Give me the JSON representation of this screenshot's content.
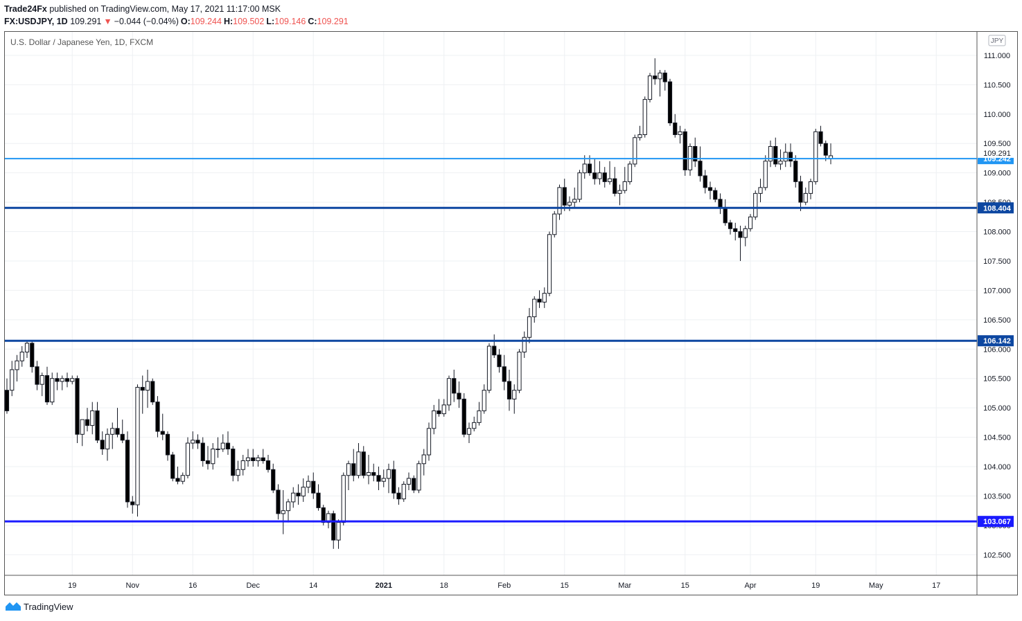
{
  "header": {
    "author": "Trade24Fx",
    "published": "published on TradingView.com, May 17, 2021 11:17:00 MSK",
    "symbol": "FX:USDJPY, 1D",
    "last": "109.291",
    "change": "−0.044 (−0.04%)",
    "o_label": "O:",
    "o": "109.244",
    "h_label": "H:",
    "h": "109.502",
    "l_label": "L:",
    "l": "109.146",
    "c_label": "C:",
    "c": "109.291"
  },
  "footer": {
    "brand": "TradingView"
  },
  "colors": {
    "accent": "#2196f3",
    "dark_level": "#0d47a1",
    "blue_level": "#1a1aff",
    "down_red": "#ef5350"
  },
  "chart_data": {
    "type": "candlestick",
    "title": "U.S. Dollar / Japanese Yen, 1D, FXCM",
    "currency_label": "JPY",
    "ylim": [
      102.15,
      111.4
    ],
    "y_ticks": [
      "102.500",
      "103.000",
      "103.500",
      "104.000",
      "104.500",
      "105.000",
      "105.500",
      "106.000",
      "106.500",
      "107.000",
      "107.500",
      "108.000",
      "108.500",
      "109.000",
      "109.500",
      "110.000",
      "110.500",
      "111.000"
    ],
    "x_ticks": [
      {
        "label": "19",
        "index": 13,
        "bold": false
      },
      {
        "label": "Nov",
        "index": 25,
        "bold": false
      },
      {
        "label": "16",
        "index": 37,
        "bold": false
      },
      {
        "label": "Dec",
        "index": 49,
        "bold": false
      },
      {
        "label": "14",
        "index": 61,
        "bold": false
      },
      {
        "label": "2021",
        "index": 75,
        "bold": true
      },
      {
        "label": "18",
        "index": 87,
        "bold": false
      },
      {
        "label": "Feb",
        "index": 99,
        "bold": false
      },
      {
        "label": "15",
        "index": 111,
        "bold": false
      },
      {
        "label": "Mar",
        "index": 123,
        "bold": false
      },
      {
        "label": "15",
        "index": 135,
        "bold": false
      },
      {
        "label": "Apr",
        "index": 148,
        "bold": false
      },
      {
        "label": "19",
        "index": 161,
        "bold": false
      },
      {
        "label": "May",
        "index": 173,
        "bold": false
      },
      {
        "label": "17",
        "index": 185,
        "bold": false
      }
    ],
    "horizontal_levels": [
      {
        "value": 109.242,
        "label": "109.242",
        "color": "#2196f3",
        "width": 2
      },
      {
        "value": 108.404,
        "label": "108.404",
        "color": "#0d47a1",
        "width": 3
      },
      {
        "value": 106.142,
        "label": "106.142",
        "color": "#0d47a1",
        "width": 3
      },
      {
        "value": 103.067,
        "label": "103.067",
        "color": "#1a1aff",
        "width": 3
      }
    ],
    "last_price": {
      "value": 109.291,
      "label": "109.291"
    },
    "candles": [
      [
        105.3,
        105.5,
        104.9,
        104.95
      ],
      [
        105.3,
        105.8,
        105.2,
        105.65
      ],
      [
        105.65,
        105.9,
        105.45,
        105.8
      ],
      [
        105.8,
        106.05,
        105.7,
        105.95
      ],
      [
        105.95,
        106.15,
        105.85,
        106.1
      ],
      [
        106.1,
        106.15,
        105.6,
        105.7
      ],
      [
        105.7,
        105.8,
        105.3,
        105.4
      ],
      [
        105.4,
        105.6,
        105.2,
        105.55
      ],
      [
        105.55,
        105.7,
        105.05,
        105.1
      ],
      [
        105.1,
        105.6,
        105.05,
        105.5
      ],
      [
        105.5,
        105.6,
        105.3,
        105.45
      ],
      [
        105.45,
        105.55,
        105.3,
        105.5
      ],
      [
        105.5,
        105.6,
        105.35,
        105.45
      ],
      [
        105.45,
        105.55,
        105.4,
        105.5
      ],
      [
        105.5,
        105.55,
        104.4,
        104.55
      ],
      [
        104.55,
        104.8,
        104.35,
        104.8
      ],
      [
        104.8,
        105.0,
        104.6,
        104.7
      ],
      [
        104.7,
        105.1,
        104.55,
        104.95
      ],
      [
        104.95,
        105.1,
        104.4,
        104.45
      ],
      [
        104.45,
        104.6,
        104.2,
        104.3
      ],
      [
        104.3,
        104.65,
        104.1,
        104.55
      ],
      [
        104.55,
        104.75,
        104.3,
        104.65
      ],
      [
        104.65,
        105.0,
        104.5,
        104.55
      ],
      [
        104.55,
        104.8,
        104.4,
        104.45
      ],
      [
        104.45,
        104.6,
        103.3,
        103.4
      ],
      [
        103.4,
        103.5,
        103.2,
        103.35
      ],
      [
        103.35,
        105.4,
        103.15,
        105.35
      ],
      [
        105.35,
        105.55,
        104.9,
        105.3
      ],
      [
        105.3,
        105.65,
        105.0,
        105.45
      ],
      [
        105.45,
        105.5,
        105.05,
        105.1
      ],
      [
        105.1,
        105.2,
        104.5,
        104.6
      ],
      [
        104.6,
        104.9,
        104.45,
        104.55
      ],
      [
        104.55,
        104.6,
        104.1,
        104.2
      ],
      [
        104.2,
        104.25,
        103.75,
        103.8
      ],
      [
        103.8,
        104.0,
        103.7,
        103.75
      ],
      [
        103.75,
        103.9,
        103.7,
        103.85
      ],
      [
        103.85,
        104.5,
        103.8,
        104.4
      ],
      [
        104.4,
        104.6,
        104.3,
        104.45
      ],
      [
        104.45,
        104.55,
        104.3,
        104.4
      ],
      [
        104.4,
        104.5,
        104.0,
        104.1
      ],
      [
        104.1,
        104.35,
        103.95,
        104.05
      ],
      [
        104.05,
        104.4,
        103.95,
        104.3
      ],
      [
        104.3,
        104.5,
        104.15,
        104.3
      ],
      [
        104.3,
        104.55,
        104.25,
        104.4
      ],
      [
        104.4,
        104.6,
        104.2,
        104.3
      ],
      [
        104.3,
        104.35,
        103.75,
        103.85
      ],
      [
        103.85,
        104.1,
        103.75,
        103.95
      ],
      [
        103.95,
        104.2,
        103.85,
        104.1
      ],
      [
        104.1,
        104.3,
        104.0,
        104.15
      ],
      [
        104.15,
        104.3,
        104.0,
        104.1
      ],
      [
        104.1,
        104.2,
        104.0,
        104.15
      ],
      [
        104.15,
        104.3,
        104.05,
        104.1
      ],
      [
        104.1,
        104.2,
        103.9,
        103.95
      ],
      [
        103.95,
        104.05,
        103.55,
        103.6
      ],
      [
        103.6,
        103.7,
        103.1,
        103.2
      ],
      [
        103.2,
        103.6,
        102.85,
        103.25
      ],
      [
        103.25,
        103.45,
        103.05,
        103.4
      ],
      [
        103.4,
        103.65,
        103.3,
        103.55
      ],
      [
        103.55,
        103.7,
        103.35,
        103.5
      ],
      [
        103.5,
        103.8,
        103.4,
        103.65
      ],
      [
        103.65,
        103.85,
        103.55,
        103.75
      ],
      [
        103.75,
        103.9,
        103.45,
        103.55
      ],
      [
        103.55,
        103.7,
        103.25,
        103.3
      ],
      [
        103.3,
        103.35,
        103.0,
        103.05
      ],
      [
        103.05,
        103.25,
        102.95,
        103.2
      ],
      [
        103.2,
        103.25,
        102.6,
        102.75
      ],
      [
        102.75,
        103.1,
        102.6,
        103.05
      ],
      [
        103.05,
        103.9,
        103.0,
        103.85
      ],
      [
        103.85,
        104.1,
        103.6,
        104.05
      ],
      [
        104.05,
        104.3,
        103.75,
        103.85
      ],
      [
        103.85,
        104.4,
        103.8,
        104.25
      ],
      [
        104.25,
        104.35,
        103.8,
        103.85
      ],
      [
        103.85,
        104.2,
        103.7,
        103.9
      ],
      [
        103.9,
        104.05,
        103.75,
        103.85
      ],
      [
        103.85,
        104.0,
        103.6,
        103.75
      ],
      [
        103.75,
        103.95,
        103.65,
        103.8
      ],
      [
        103.8,
        104.05,
        103.55,
        103.95
      ],
      [
        103.95,
        104.1,
        103.45,
        103.55
      ],
      [
        103.55,
        103.65,
        103.35,
        103.45
      ],
      [
        103.45,
        103.75,
        103.4,
        103.7
      ],
      [
        103.7,
        103.9,
        103.6,
        103.8
      ],
      [
        103.8,
        103.85,
        103.55,
        103.6
      ],
      [
        103.6,
        104.1,
        103.55,
        104.05
      ],
      [
        104.05,
        104.3,
        103.85,
        104.2
      ],
      [
        104.2,
        104.75,
        104.1,
        104.65
      ],
      [
        104.65,
        105.05,
        104.55,
        104.95
      ],
      [
        104.95,
        105.15,
        104.85,
        104.9
      ],
      [
        104.9,
        105.15,
        104.85,
        105.05
      ],
      [
        105.05,
        105.55,
        104.95,
        105.5
      ],
      [
        105.5,
        105.65,
        105.1,
        105.25
      ],
      [
        105.25,
        105.45,
        105.0,
        105.15
      ],
      [
        105.15,
        105.25,
        104.5,
        104.55
      ],
      [
        104.55,
        104.75,
        104.4,
        104.65
      ],
      [
        104.65,
        104.85,
        104.6,
        104.75
      ],
      [
        104.75,
        105.1,
        104.7,
        104.95
      ],
      [
        104.95,
        105.4,
        104.9,
        105.3
      ],
      [
        105.3,
        106.1,
        105.25,
        106.05
      ],
      [
        106.05,
        106.25,
        105.85,
        105.9
      ],
      [
        105.9,
        106.0,
        105.6,
        105.7
      ],
      [
        105.7,
        105.9,
        105.3,
        105.45
      ],
      [
        105.45,
        105.65,
        104.95,
        105.15
      ],
      [
        105.15,
        105.4,
        104.9,
        105.3
      ],
      [
        105.3,
        106.0,
        105.25,
        105.95
      ],
      [
        105.95,
        106.3,
        105.85,
        106.2
      ],
      [
        106.2,
        106.7,
        106.1,
        106.55
      ],
      [
        106.55,
        106.9,
        106.45,
        106.85
      ],
      [
        106.85,
        107.0,
        106.7,
        106.8
      ],
      [
        106.8,
        107.05,
        106.7,
        106.95
      ],
      [
        106.95,
        108.0,
        106.9,
        107.95
      ],
      [
        107.95,
        108.35,
        107.9,
        108.3
      ],
      [
        108.3,
        108.8,
        108.2,
        108.75
      ],
      [
        108.75,
        108.9,
        108.35,
        108.45
      ],
      [
        108.45,
        108.6,
        108.35,
        108.5
      ],
      [
        108.5,
        108.75,
        108.4,
        108.55
      ],
      [
        108.55,
        109.05,
        108.5,
        109.0
      ],
      [
        109.0,
        109.3,
        108.9,
        109.15
      ],
      [
        109.15,
        109.3,
        108.95,
        109.0
      ],
      [
        109.0,
        109.25,
        108.8,
        108.9
      ],
      [
        108.9,
        109.2,
        108.8,
        109.0
      ],
      [
        109.0,
        109.1,
        108.75,
        108.85
      ],
      [
        108.85,
        109.2,
        108.8,
        108.9
      ],
      [
        108.9,
        109.1,
        108.6,
        108.65
      ],
      [
        108.65,
        108.8,
        108.45,
        108.7
      ],
      [
        108.7,
        109.1,
        108.65,
        108.85
      ],
      [
        108.85,
        109.2,
        108.8,
        109.15
      ],
      [
        109.15,
        109.65,
        109.1,
        109.6
      ],
      [
        109.6,
        109.8,
        109.55,
        109.65
      ],
      [
        109.65,
        110.3,
        109.6,
        110.25
      ],
      [
        110.25,
        110.7,
        110.2,
        110.65
      ],
      [
        110.65,
        110.95,
        110.5,
        110.6
      ],
      [
        110.6,
        110.75,
        110.3,
        110.7
      ],
      [
        110.7,
        110.75,
        110.4,
        110.55
      ],
      [
        110.55,
        110.6,
        109.8,
        109.85
      ],
      [
        109.85,
        110.0,
        109.6,
        109.65
      ],
      [
        109.65,
        109.8,
        109.5,
        109.7
      ],
      [
        109.7,
        109.75,
        108.95,
        109.05
      ],
      [
        109.05,
        109.5,
        108.95,
        109.45
      ],
      [
        109.45,
        109.6,
        109.1,
        109.2
      ],
      [
        109.2,
        109.45,
        108.85,
        108.95
      ],
      [
        108.95,
        109.05,
        108.65,
        108.75
      ],
      [
        108.75,
        108.85,
        108.55,
        108.7
      ],
      [
        108.7,
        108.75,
        108.5,
        108.55
      ],
      [
        108.55,
        108.65,
        108.3,
        108.4
      ],
      [
        108.4,
        108.55,
        108.1,
        108.15
      ],
      [
        108.15,
        108.2,
        107.95,
        108.05
      ],
      [
        108.05,
        108.15,
        107.85,
        108.0
      ],
      [
        108.0,
        108.1,
        107.5,
        107.9
      ],
      [
        107.9,
        108.1,
        107.75,
        108.05
      ],
      [
        108.05,
        108.3,
        108.0,
        108.25
      ],
      [
        108.25,
        108.7,
        108.2,
        108.65
      ],
      [
        108.65,
        108.9,
        108.5,
        108.75
      ],
      [
        108.75,
        109.3,
        108.7,
        109.2
      ],
      [
        109.2,
        109.55,
        109.1,
        109.45
      ],
      [
        109.45,
        109.6,
        109.1,
        109.15
      ],
      [
        109.15,
        109.4,
        109.05,
        109.2
      ],
      [
        109.2,
        109.5,
        109.1,
        109.35
      ],
      [
        109.35,
        109.5,
        109.1,
        109.2
      ],
      [
        109.2,
        109.3,
        108.75,
        108.85
      ],
      [
        108.85,
        108.95,
        108.35,
        108.5
      ],
      [
        108.5,
        108.75,
        108.45,
        108.65
      ],
      [
        108.65,
        108.9,
        108.55,
        108.85
      ],
      [
        108.85,
        109.75,
        108.8,
        109.7
      ],
      [
        109.7,
        109.8,
        109.45,
        109.5
      ],
      [
        109.5,
        109.55,
        109.2,
        109.3
      ],
      [
        109.244,
        109.502,
        109.146,
        109.291
      ]
    ]
  }
}
